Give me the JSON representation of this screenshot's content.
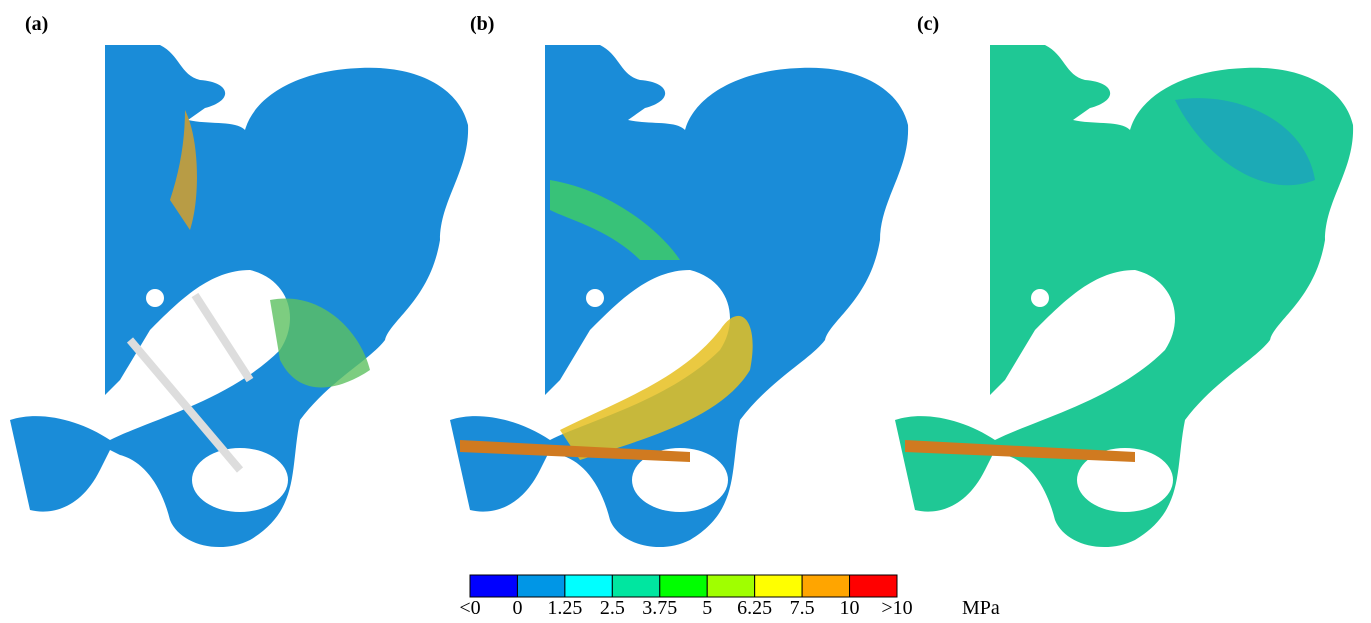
{
  "panels": [
    {
      "label": "(a)"
    },
    {
      "label": "(b)"
    },
    {
      "label": "(c)"
    }
  ],
  "colorbar": {
    "colors": [
      "#0000ff",
      "#0096e6",
      "#00ffff",
      "#00e6a0",
      "#00ff00",
      "#a0ff00",
      "#ffff00",
      "#ffa500",
      "#ff0000"
    ],
    "labels": [
      "<0",
      "0",
      "1.25",
      "2.5",
      "3.75",
      "5",
      "6.25",
      "7.5",
      "10",
      ">10"
    ],
    "unit": "MPa"
  }
}
